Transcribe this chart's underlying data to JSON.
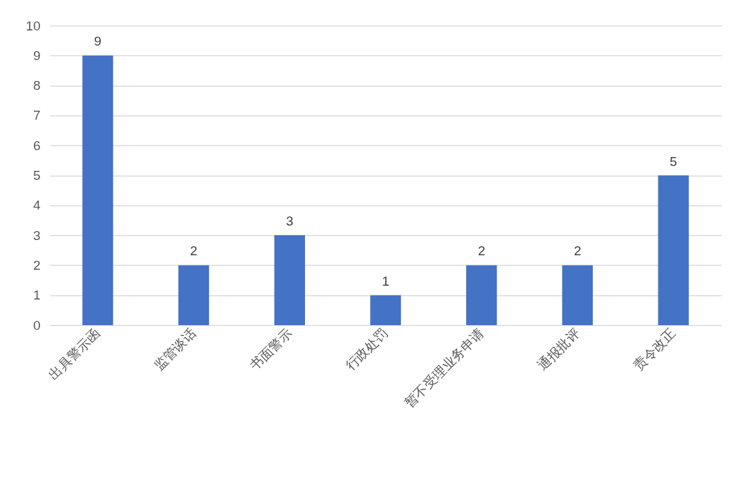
{
  "chart_data": {
    "type": "bar",
    "categories": [
      "出具警示函",
      "监管谈话",
      "书面警示",
      "行政处罚",
      "暂不受理业务申请",
      "通报批评",
      "责令改正"
    ],
    "values": [
      9,
      2,
      3,
      1,
      2,
      2,
      5
    ],
    "color": "#4472c4",
    "ylim": [
      0,
      10
    ],
    "yticks": [
      0,
      1,
      2,
      3,
      4,
      5,
      6,
      7,
      8,
      9,
      10
    ],
    "grid": "y",
    "data_labels": true
  }
}
